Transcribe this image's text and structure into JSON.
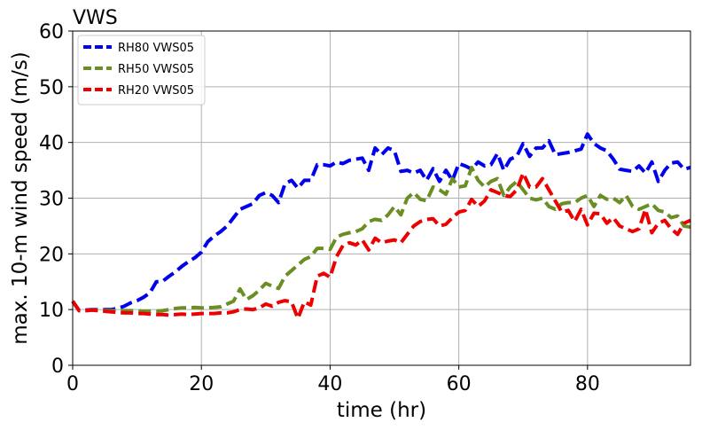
{
  "chart_data": {
    "type": "line",
    "title": "VWS",
    "xlabel": "time (hr)",
    "ylabel": "max. 10-m wind speed (m/s)",
    "xlim": [
      0,
      96
    ],
    "ylim": [
      0,
      60
    ],
    "xticks": [
      0,
      20,
      40,
      60,
      80
    ],
    "yticks": [
      0,
      10,
      20,
      30,
      40,
      50,
      60
    ],
    "grid": true,
    "legend_position": "top-left",
    "series": [
      {
        "name": "RH80 VWS05",
        "color": "#0000ee",
        "x": [
          0,
          1,
          2,
          3,
          4,
          5,
          6,
          7,
          8,
          9,
          10,
          11,
          12,
          13,
          14,
          15,
          16,
          17,
          18,
          19,
          20,
          21,
          22,
          23,
          24,
          25,
          26,
          27,
          28,
          29,
          30,
          31,
          32,
          33,
          34,
          35,
          36,
          37,
          38,
          39,
          40,
          41,
          42,
          43,
          44,
          45,
          46,
          47,
          48,
          49,
          50,
          51,
          52,
          53,
          54,
          55,
          56,
          57,
          58,
          59,
          60,
          61,
          62,
          63,
          64,
          65,
          66,
          67,
          68,
          69,
          70,
          71,
          72,
          73,
          74,
          75,
          76,
          77,
          78,
          79,
          80,
          81,
          82,
          83,
          84,
          85,
          86,
          87,
          88,
          89,
          90,
          91,
          92,
          93,
          94,
          95,
          96
        ],
        "values": [
          11.5,
          9.8,
          9.9,
          10.0,
          10.0,
          10.0,
          10.0,
          10.2,
          10.6,
          11.2,
          11.6,
          12.2,
          13.0,
          15.0,
          15.1,
          16.0,
          16.8,
          17.8,
          18.6,
          19.3,
          20.3,
          22.2,
          23.2,
          24.0,
          25.0,
          26.5,
          28.0,
          28.5,
          29.0,
          30.5,
          31.0,
          30.5,
          29.2,
          32.6,
          33.2,
          31.8,
          33.2,
          33.2,
          36.0,
          36.0,
          35.8,
          36.5,
          36.2,
          36.8,
          37.0,
          37.2,
          35.0,
          39.0,
          37.8,
          39.0,
          38.5,
          34.8,
          35.0,
          34.5,
          35.0,
          33.2,
          35.3,
          33.0,
          35.0,
          33.2,
          36.2,
          35.8,
          35.2,
          36.5,
          35.8,
          36.0,
          38.0,
          35.0,
          37.0,
          37.5,
          39.8,
          37.5,
          39.0,
          39.0,
          40.3,
          37.8,
          38.0,
          38.2,
          38.5,
          38.8,
          41.5,
          39.8,
          39.0,
          38.5,
          37.0,
          35.2,
          35.0,
          34.8,
          35.8,
          34.5,
          36.5,
          33.0,
          35.0,
          36.3,
          36.5,
          35.2,
          35.5
        ]
      },
      {
        "name": "RH50 VWS05",
        "color": "#6b8e23",
        "x": [
          0,
          1,
          2,
          3,
          4,
          5,
          6,
          7,
          8,
          9,
          10,
          11,
          12,
          13,
          14,
          15,
          16,
          17,
          18,
          19,
          20,
          21,
          22,
          23,
          24,
          25,
          26,
          27,
          28,
          29,
          30,
          31,
          32,
          33,
          34,
          35,
          36,
          37,
          38,
          39,
          40,
          41,
          42,
          43,
          44,
          45,
          46,
          47,
          48,
          49,
          50,
          51,
          52,
          53,
          54,
          55,
          56,
          57,
          58,
          59,
          60,
          61,
          62,
          63,
          64,
          65,
          66,
          67,
          68,
          69,
          70,
          71,
          72,
          73,
          74,
          75,
          76,
          77,
          78,
          79,
          80,
          81,
          82,
          83,
          84,
          85,
          86,
          87,
          88,
          89,
          90,
          91,
          92,
          93,
          94,
          95,
          96
        ],
        "values": [
          11.5,
          9.8,
          9.8,
          9.9,
          9.9,
          9.8,
          9.8,
          9.8,
          9.8,
          9.8,
          9.8,
          9.7,
          9.7,
          9.7,
          9.8,
          10.0,
          10.2,
          10.3,
          10.3,
          10.4,
          10.3,
          10.3,
          10.4,
          10.5,
          11.0,
          11.5,
          13.7,
          11.8,
          12.5,
          13.5,
          14.7,
          14.2,
          13.8,
          16.0,
          17.0,
          18.0,
          19.0,
          19.5,
          21.0,
          21.0,
          20.8,
          23.0,
          23.5,
          23.8,
          24.0,
          24.5,
          25.8,
          26.2,
          26.0,
          27.0,
          28.5,
          27.0,
          30.0,
          31.0,
          29.8,
          29.5,
          32.0,
          31.5,
          30.7,
          33.5,
          32.0,
          32.2,
          35.5,
          33.2,
          32.0,
          33.0,
          33.5,
          30.5,
          32.0,
          33.0,
          31.5,
          30.0,
          29.7,
          30.0,
          28.5,
          28.0,
          29.0,
          29.2,
          29.2,
          30.0,
          30.5,
          28.5,
          30.5,
          29.8,
          30.0,
          29.2,
          30.5,
          28.5,
          28.0,
          28.5,
          29.0,
          27.8,
          27.5,
          26.5,
          26.8,
          25.0,
          24.8
        ]
      },
      {
        "name": "RH20 VWS05",
        "color": "#ee0000",
        "x": [
          0,
          1,
          2,
          3,
          4,
          5,
          6,
          7,
          8,
          9,
          10,
          11,
          12,
          13,
          14,
          15,
          16,
          17,
          18,
          19,
          20,
          21,
          22,
          23,
          24,
          25,
          26,
          27,
          28,
          29,
          30,
          31,
          32,
          33,
          34,
          35,
          36,
          37,
          38,
          39,
          40,
          41,
          42,
          43,
          44,
          45,
          46,
          47,
          48,
          49,
          50,
          51,
          52,
          53,
          54,
          55,
          56,
          57,
          58,
          59,
          60,
          61,
          62,
          63,
          64,
          65,
          66,
          67,
          68,
          69,
          70,
          71,
          72,
          73,
          74,
          75,
          76,
          77,
          78,
          79,
          80,
          81,
          82,
          83,
          84,
          85,
          86,
          87,
          88,
          89,
          90,
          91,
          92,
          93,
          94,
          95,
          96
        ],
        "values": [
          11.5,
          9.8,
          9.8,
          9.9,
          9.8,
          9.7,
          9.6,
          9.5,
          9.4,
          9.4,
          9.3,
          9.3,
          9.2,
          9.1,
          9.1,
          9.0,
          9.1,
          9.2,
          9.1,
          9.2,
          9.3,
          9.3,
          9.3,
          9.4,
          9.4,
          9.6,
          10.0,
          10.1,
          10.0,
          10.3,
          11.0,
          10.6,
          11.3,
          11.6,
          11.4,
          8.4,
          11.4,
          10.8,
          16.0,
          16.5,
          15.8,
          19.5,
          21.5,
          22.0,
          21.6,
          22.5,
          20.7,
          22.8,
          22.0,
          22.3,
          22.5,
          22.0,
          23.5,
          25.0,
          25.8,
          26.2,
          26.3,
          25.0,
          25.3,
          26.5,
          27.5,
          27.8,
          29.8,
          28.5,
          29.5,
          31.5,
          31.0,
          30.5,
          30.3,
          31.5,
          34.5,
          32.0,
          32.0,
          33.5,
          31.5,
          29.5,
          27.5,
          27.8,
          25.8,
          28.0,
          25.2,
          27.3,
          27.2,
          25.5,
          26.5,
          25.0,
          24.5,
          24.0,
          24.5,
          28.0,
          23.8,
          25.5,
          26.0,
          24.5,
          23.5,
          25.5,
          26.0
        ]
      }
    ]
  }
}
